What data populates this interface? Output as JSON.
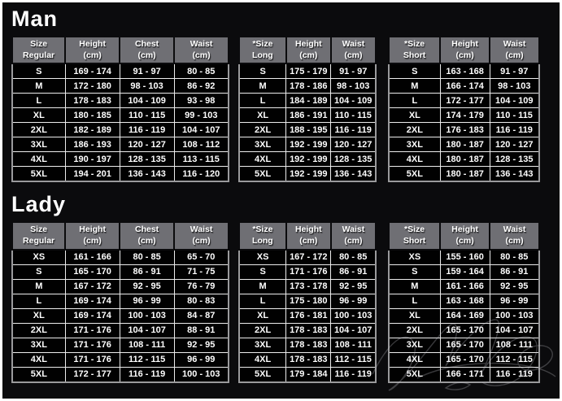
{
  "colors": {
    "background": "#0b0b0d",
    "frame_border": "#ffffff",
    "header_cell_bg": "#6f6f74",
    "header_text": "#ffffff",
    "body_cell_bg": "#010101",
    "body_text": "#ffffff",
    "grid_line": "#ececec",
    "table_outer_border": "#9a9a9c"
  },
  "watermark": "faint handwritten scribble signature overlay, bottom-right",
  "chart_data": [
    {
      "type": "table",
      "title": "Man",
      "tables": [
        {
          "name": "regular",
          "columns": [
            [
              "Size",
              "Regular"
            ],
            [
              "Height",
              "(cm)"
            ],
            [
              "Chest",
              "(cm)"
            ],
            [
              "Waist",
              "(cm)"
            ]
          ],
          "rows": [
            [
              "S",
              "169 - 174",
              "91 - 97",
              "80 - 85"
            ],
            [
              "M",
              "172 - 180",
              "98 - 103",
              "86 - 92"
            ],
            [
              "L",
              "178 - 183",
              "104 - 109",
              "93 - 98"
            ],
            [
              "XL",
              "180 - 185",
              "110 - 115",
              "99 - 103"
            ],
            [
              "2XL",
              "182 - 189",
              "116 - 119",
              "104 - 107"
            ],
            [
              "3XL",
              "186 - 193",
              "120 - 127",
              "108 - 112"
            ],
            [
              "4XL",
              "190 - 197",
              "128 - 135",
              "113 - 115"
            ],
            [
              "5XL",
              "194 - 201",
              "136 - 143",
              "116 - 120"
            ]
          ]
        },
        {
          "name": "long",
          "columns": [
            [
              "*Size",
              "Long"
            ],
            [
              "Height",
              "(cm)"
            ],
            [
              "Waist",
              "(cm)"
            ]
          ],
          "rows": [
            [
              "S",
              "175 - 179",
              "91 - 97"
            ],
            [
              "M",
              "178 - 186",
              "98 - 103"
            ],
            [
              "L",
              "184 - 189",
              "104 - 109"
            ],
            [
              "XL",
              "186 - 191",
              "110 - 115"
            ],
            [
              "2XL",
              "188 - 195",
              "116 - 119"
            ],
            [
              "3XL",
              "192 - 199",
              "120 - 127"
            ],
            [
              "4XL",
              "192 - 199",
              "128 - 135"
            ],
            [
              "5XL",
              "192 - 199",
              "136 - 143"
            ]
          ]
        },
        {
          "name": "short",
          "columns": [
            [
              "*Size",
              "Short"
            ],
            [
              "Height",
              "(cm)"
            ],
            [
              "Waist",
              "(cm)"
            ]
          ],
          "rows": [
            [
              "S",
              "163 - 168",
              "91 - 97"
            ],
            [
              "M",
              "166 - 174",
              "98 - 103"
            ],
            [
              "L",
              "172 - 177",
              "104 - 109"
            ],
            [
              "XL",
              "174 - 179",
              "110 - 115"
            ],
            [
              "2XL",
              "176 - 183",
              "116 - 119"
            ],
            [
              "3XL",
              "180 - 187",
              "120 - 127"
            ],
            [
              "4XL",
              "180 - 187",
              "128 - 135"
            ],
            [
              "5XL",
              "180 - 187",
              "136 - 143"
            ]
          ]
        }
      ]
    },
    {
      "type": "table",
      "title": "Lady",
      "tables": [
        {
          "name": "regular",
          "columns": [
            [
              "Size",
              "Regular"
            ],
            [
              "Height",
              "(cm)"
            ],
            [
              "Chest",
              "(cm)"
            ],
            [
              "Waist",
              "(cm)"
            ]
          ],
          "rows": [
            [
              "XS",
              "161 - 166",
              "80 - 85",
              "65 - 70"
            ],
            [
              "S",
              "165 - 170",
              "86 - 91",
              "71 - 75"
            ],
            [
              "M",
              "167 - 172",
              "92 - 95",
              "76 - 79"
            ],
            [
              "L",
              "169 - 174",
              "96 - 99",
              "80 - 83"
            ],
            [
              "XL",
              "169 - 174",
              "100 - 103",
              "84 - 87"
            ],
            [
              "2XL",
              "171 - 176",
              "104 - 107",
              "88 - 91"
            ],
            [
              "3XL",
              "171 - 176",
              "108 - 111",
              "92 - 95"
            ],
            [
              "4XL",
              "171 - 176",
              "112 - 115",
              "96 - 99"
            ],
            [
              "5XL",
              "172 - 177",
              "116 - 119",
              "100 - 103"
            ]
          ]
        },
        {
          "name": "long",
          "columns": [
            [
              "*Size",
              "Long"
            ],
            [
              "Height",
              "(cm)"
            ],
            [
              "Waist",
              "(cm)"
            ]
          ],
          "rows": [
            [
              "XS",
              "167 - 172",
              "80 - 85"
            ],
            [
              "S",
              "171 - 176",
              "86 - 91"
            ],
            [
              "M",
              "173 - 178",
              "92 - 95"
            ],
            [
              "L",
              "175 - 180",
              "96 - 99"
            ],
            [
              "XL",
              "176 - 181",
              "100 - 103"
            ],
            [
              "2XL",
              "178 - 183",
              "104 - 107"
            ],
            [
              "3XL",
              "178 - 183",
              "108 - 111"
            ],
            [
              "4XL",
              "178 - 183",
              "112 - 115"
            ],
            [
              "5XL",
              "179 - 184",
              "116 - 119"
            ]
          ]
        },
        {
          "name": "short",
          "columns": [
            [
              "*Size",
              "Short"
            ],
            [
              "Height",
              "(cm)"
            ],
            [
              "Waist",
              "(cm)"
            ]
          ],
          "rows": [
            [
              "XS",
              "155 - 160",
              "80 - 85"
            ],
            [
              "S",
              "159 - 164",
              "86 - 91"
            ],
            [
              "M",
              "161 - 166",
              "92 - 95"
            ],
            [
              "L",
              "163 - 168",
              "96 - 99"
            ],
            [
              "XL",
              "164 - 169",
              "100 - 103"
            ],
            [
              "2XL",
              "165 - 170",
              "104 - 107"
            ],
            [
              "3XL",
              "165 - 170",
              "108 - 111"
            ],
            [
              "4XL",
              "165 - 170",
              "112 - 115"
            ],
            [
              "5XL",
              "166 - 171",
              "116 - 119"
            ]
          ]
        }
      ]
    }
  ]
}
